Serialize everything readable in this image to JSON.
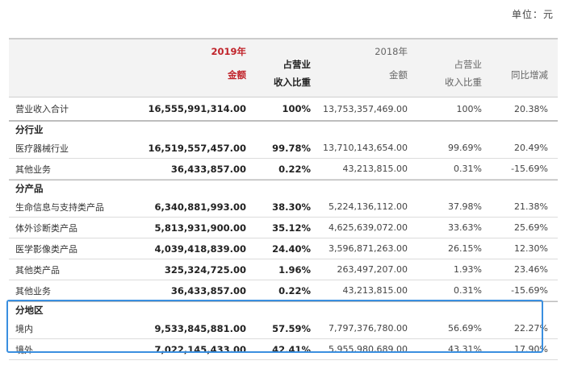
{
  "unit": "单位：元",
  "header": {
    "year_2019": "2019年",
    "amount_2019": "金额",
    "share_2019_line1": "占营业",
    "share_2019_line2": "收入比重",
    "year_2018": "2018年",
    "amount_2018": "金额",
    "share_2018_line1": "占营业",
    "share_2018_line2": "收入比重",
    "yoy": "同比增减"
  },
  "total": {
    "label": "营业收入合计",
    "amount_2019": "16,555,991,314.00",
    "share_2019": "100%",
    "amount_2018": "13,753,357,469.00",
    "share_2018": "100%",
    "yoy": "20.38%"
  },
  "sections": [
    {
      "title": "分行业",
      "rows": [
        {
          "label": "医疗器械行业",
          "amount_2019": "16,519,557,457.00",
          "share_2019": "99.78%",
          "amount_2018": "13,710,143,654.00",
          "share_2018": "99.69%",
          "yoy": "20.49%"
        },
        {
          "label": "其他业务",
          "amount_2019": "36,433,857.00",
          "share_2019": "0.22%",
          "amount_2018": "43,213,815.00",
          "share_2018": "0.31%",
          "yoy": "-15.69%"
        }
      ]
    },
    {
      "title": "分产品",
      "rows": [
        {
          "label": "生命信息与支持类产品",
          "amount_2019": "6,340,881,993.00",
          "share_2019": "38.30%",
          "amount_2018": "5,224,136,112.00",
          "share_2018": "37.98%",
          "yoy": "21.38%"
        },
        {
          "label": "体外诊断类产品",
          "amount_2019": "5,813,931,900.00",
          "share_2019": "35.12%",
          "amount_2018": "4,625,639,072.00",
          "share_2018": "33.63%",
          "yoy": "25.69%"
        },
        {
          "label": "医学影像类产品",
          "amount_2019": "4,039,418,839.00",
          "share_2019": "24.40%",
          "amount_2018": "3,596,871,263.00",
          "share_2018": "26.15%",
          "yoy": "12.30%"
        },
        {
          "label": "其他类产品",
          "amount_2019": "325,324,725.00",
          "share_2019": "1.96%",
          "amount_2018": "263,497,207.00",
          "share_2018": "1.93%",
          "yoy": "23.46%"
        },
        {
          "label": "其他业务",
          "amount_2019": "36,433,857.00",
          "share_2019": "0.22%",
          "amount_2018": "43,213,815.00",
          "share_2018": "0.31%",
          "yoy": "-15.69%"
        }
      ]
    },
    {
      "title": "分地区",
      "rows": [
        {
          "label": "境内",
          "amount_2019": "9,533,845,881.00",
          "share_2019": "57.59%",
          "amount_2018": "7,797,376,780.00",
          "share_2018": "56.69%",
          "yoy": "22.27%"
        },
        {
          "label": "境外",
          "amount_2019": "7,022,145,433.00",
          "share_2019": "42.41%",
          "amount_2018": "5,955,980,689.00",
          "share_2018": "43.31%",
          "yoy": "17.90%"
        }
      ]
    }
  ],
  "colors": {
    "accent_2019": "#c0232a",
    "highlight_border": "#3a8fe0"
  }
}
